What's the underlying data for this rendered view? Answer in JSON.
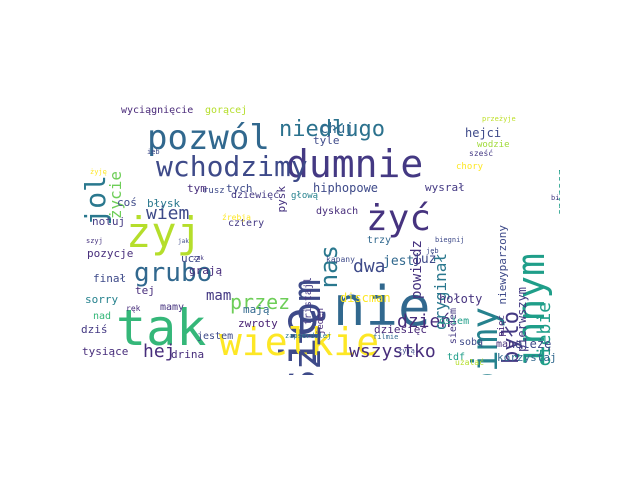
{
  "words": [
    {
      "text": "nie",
      "color": "#31688e"
    },
    {
      "text": "tak",
      "color": "#35b779"
    },
    {
      "text": "się",
      "color": "#3e4a89"
    },
    {
      "text": "dumnie",
      "color": "#443983"
    },
    {
      "text": "pozwól",
      "color": "#31688e"
    },
    {
      "text": "wielkie",
      "color": "#fde725"
    },
    {
      "text": "ziom",
      "color": "#3e4a89"
    },
    {
      "text": "zrobimy",
      "color": "#26828e"
    },
    {
      "text": "innym",
      "color": "#1f9e89"
    },
    {
      "text": "żyć",
      "color": "#46337f"
    },
    {
      "text": "żyj",
      "color": "#b5de2b"
    },
    {
      "text": "wchodzimy",
      "color": "#3e4a89"
    },
    {
      "text": "grubo",
      "color": "#31688e"
    },
    {
      "text": "jol",
      "color": "#2a788e"
    },
    {
      "text": "niedługo",
      "color": "#2c728e"
    },
    {
      "text": "nas",
      "color": "#2a788e"
    },
    {
      "text": "było",
      "color": "#443983"
    },
    {
      "text": "wszystko",
      "color": "#472d7b"
    },
    {
      "text": "dzień",
      "color": "#472d7b"
    },
    {
      "text": "wiem",
      "color": "#3e4a89"
    },
    {
      "text": "przez",
      "color": "#6ece58"
    },
    {
      "text": "dwa",
      "color": "#3e4a89"
    },
    {
      "text": "mam",
      "color": "#443983"
    },
    {
      "text": "ciebie",
      "color": "#1f9e89"
    },
    {
      "text": "hej",
      "color": "#472d7b"
    },
    {
      "text": "życie",
      "color": "#6ece58"
    },
    {
      "text": "oryginał",
      "color": "#2a788e"
    },
    {
      "text": "powiedz",
      "color": "#46337f"
    },
    {
      "text": "chuj",
      "color": "#31688e"
    },
    {
      "text": "hejci",
      "color": "#3e4a89"
    },
    {
      "text": "hiphopowe",
      "color": "#3e4a89"
    },
    {
      "text": "discman",
      "color": "#fde725"
    },
    {
      "text": "hołoty",
      "color": "#46337f"
    },
    {
      "text": "jest",
      "color": "#31688e"
    },
    {
      "text": "już",
      "color": "#3e4a89"
    },
    {
      "text": "drina",
      "color": "#472d7b"
    },
    {
      "text": "zwroty",
      "color": "#482173"
    },
    {
      "text": "należę",
      "color": "#3e4a89"
    },
    {
      "text": "korzystaj",
      "color": "#31688e"
    },
    {
      "text": "pierwszym",
      "color": "#443983"
    },
    {
      "text": "niewyparzony",
      "color": "#3e4a89"
    },
    {
      "text": "stopowych",
      "color": "#1f9e89"
    },
    {
      "text": "spinasz",
      "color": "#1f9e89"
    },
    {
      "text": "tysiące",
      "color": "#472d7b"
    },
    {
      "text": "dziś",
      "color": "#443983"
    },
    {
      "text": "sorry",
      "color": "#26828e"
    },
    {
      "text": "finał",
      "color": "#3e4a89"
    },
    {
      "text": "pozycje",
      "color": "#472d7b"
    },
    {
      "text": "notuj",
      "color": "#443983"
    },
    {
      "text": "coś",
      "color": "#3e4a89"
    },
    {
      "text": "wyciągnięcie",
      "color": "#482878"
    },
    {
      "text": "gorącej",
      "color": "#b5de2b"
    },
    {
      "text": "tyle",
      "color": "#3e4a89"
    },
    {
      "text": "wodzie",
      "color": "#a0da39"
    },
    {
      "text": "przeżyje",
      "color": "#bddf26"
    },
    {
      "text": "sześć",
      "color": "#443983"
    },
    {
      "text": "tym",
      "color": "#472d7b"
    },
    {
      "text": "tych",
      "color": "#3e4a89"
    },
    {
      "text": "pysk",
      "color": "#46337f"
    },
    {
      "text": "głową",
      "color": "#26828e"
    },
    {
      "text": "wysrał",
      "color": "#443983"
    },
    {
      "text": "chory",
      "color": "#fde725"
    },
    {
      "text": "błysk",
      "color": "#2a788e"
    },
    {
      "text": "rusz",
      "color": "#3e4a89"
    },
    {
      "text": "dziewięć",
      "color": "#443983"
    },
    {
      "text": "dyskach",
      "color": "#472d7b"
    },
    {
      "text": "trzy",
      "color": "#31688e"
    },
    {
      "text": "cztery",
      "color": "#443983"
    },
    {
      "text": "grają",
      "color": "#472d7b"
    },
    {
      "text": "mają",
      "color": "#31688e"
    },
    {
      "text": "jestem",
      "color": "#3e4a89"
    },
    {
      "text": "dziesięć",
      "color": "#482878"
    },
    {
      "text": "ucz",
      "color": "#3e4a89"
    },
    {
      "text": "tej",
      "color": "#472d7b"
    },
    {
      "text": "mamy",
      "color": "#46337f"
    },
    {
      "text": "nad",
      "color": "#35b779"
    },
    {
      "text": "siedem",
      "color": "#443983"
    },
    {
      "text": "sobą",
      "color": "#3e4a89"
    },
    {
      "text": "man",
      "color": "#472d7b"
    },
    {
      "text": "osiem",
      "color": "#1f9e89"
    },
    {
      "text": "kapany",
      "color": "#3e4a89"
    },
    {
      "text": "jeden",
      "color": "#472d7b"
    },
    {
      "text": "fristajl",
      "color": "#443983"
    },
    {
      "text": "tdf",
      "color": "#1f9e89"
    },
    {
      "text": "pięć",
      "color": "#482878"
    },
    {
      "text": "zapserdalej",
      "color": "#2a788e"
    },
    {
      "text": "filmie",
      "color": "#31688e"
    },
    {
      "text": "żyją",
      "color": "#3e4a89"
    },
    {
      "text": "użalać",
      "color": "#b5de2b"
    },
    {
      "text": "bierz",
      "color": "#443983"
    },
    {
      "text": "biegnij",
      "color": "#3e4a89"
    },
    {
      "text": "jak",
      "color": "#3e4a89"
    },
    {
      "text": "szyj",
      "color": "#46337f"
    },
    {
      "text": "ręk",
      "color": "#472d7b"
    },
    {
      "text": "żyję",
      "color": "#fde725"
    },
    {
      "text": "ieb",
      "color": "#3e4a89"
    },
    {
      "text": "jeb",
      "color": "#3e4a89"
    },
    {
      "text": "źrebja",
      "color": "#fde725"
    },
    {
      "text": "zak",
      "color": "#443983"
    }
  ]
}
